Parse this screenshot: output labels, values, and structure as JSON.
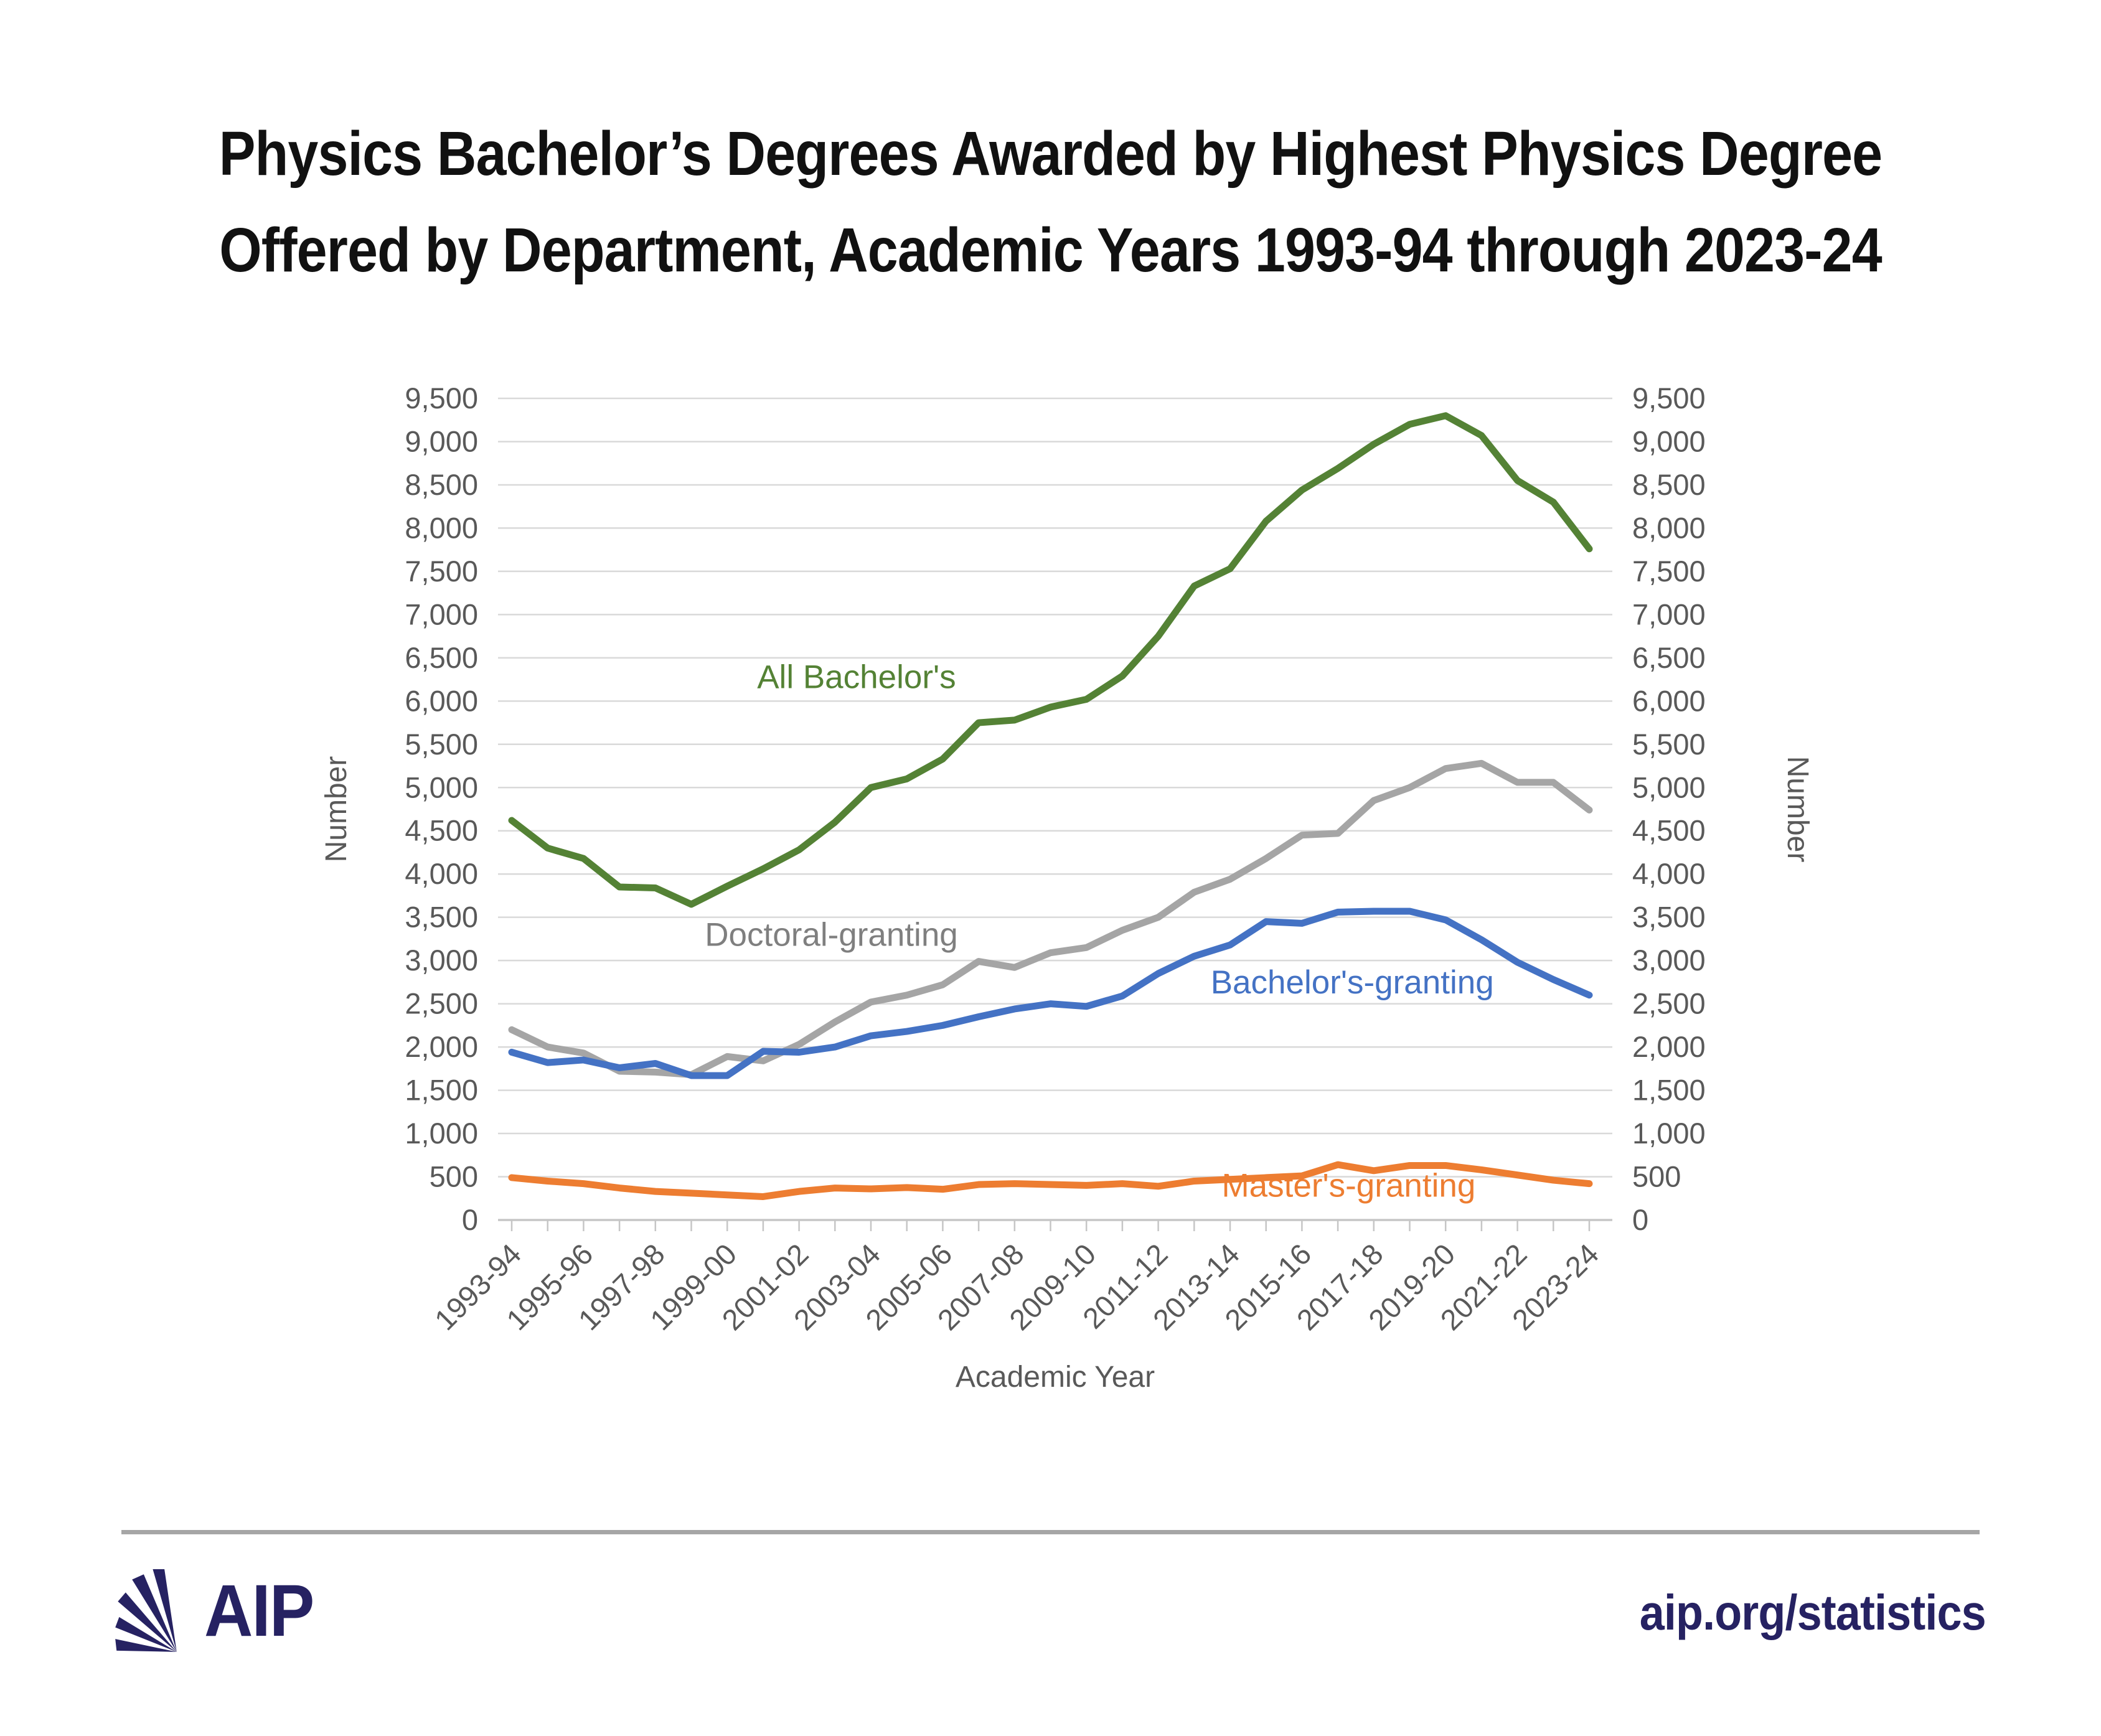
{
  "title": {
    "line1": "Physics Bachelor’s Degrees Awarded by Highest Physics Degree",
    "line2": "Offered by Department, Academic Years 1993-94 through 2023-24"
  },
  "chart_data": {
    "type": "line",
    "grid": true,
    "x_axis": {
      "label": "Academic Year",
      "tick_label_every": 2,
      "categories": [
        "1993-94",
        "1994-95",
        "1995-96",
        "1996-97",
        "1997-98",
        "1998-99",
        "1999-00",
        "2000-01",
        "2001-02",
        "2002-03",
        "2003-04",
        "2004-05",
        "2005-06",
        "2006-07",
        "2007-08",
        "2008-09",
        "2009-10",
        "2010-11",
        "2011-12",
        "2012-13",
        "2013-14",
        "2014-15",
        "2015-16",
        "2016-17",
        "2017-18",
        "2018-19",
        "2019-20",
        "2020-21",
        "2021-22",
        "2022-23",
        "2023-24"
      ]
    },
    "y_axis": {
      "label_left": "Number",
      "label_right": "Number",
      "min": 0,
      "max": 9500,
      "step": 500
    },
    "colors": {
      "gridline": "#d9d9d9",
      "axis_line": "#c6c6c6",
      "tick_text": "#595959",
      "axis_title_text": "#595959"
    },
    "series": [
      {
        "name": "All Bachelor's",
        "color": "#548235",
        "label_color": "#548235",
        "label_at": {
          "x_index": 9.6,
          "value": 6280
        },
        "values": [
          4620,
          4300,
          4180,
          3850,
          3840,
          3650,
          3860,
          4060,
          4280,
          4600,
          5000,
          5100,
          5330,
          5750,
          5780,
          5930,
          6020,
          6290,
          6750,
          7330,
          7530,
          8080,
          8440,
          8690,
          8970,
          9200,
          9300,
          9070,
          8550,
          8300,
          7760
        ]
      },
      {
        "name": "Doctoral-granting",
        "color": "#a5a5a5",
        "label_color": "#7f7f7f",
        "label_at": {
          "x_index": 8.9,
          "value": 3300
        },
        "values": [
          2200,
          2000,
          1930,
          1720,
          1710,
          1680,
          1890,
          1840,
          2030,
          2290,
          2520,
          2600,
          2720,
          2990,
          2920,
          3090,
          3150,
          3350,
          3500,
          3790,
          3940,
          4180,
          4450,
          4470,
          4850,
          5000,
          5220,
          5280,
          5060,
          5060,
          4740
        ]
      },
      {
        "name": "Bachelor's-granting",
        "color": "#4472c4",
        "label_color": "#4472c4",
        "label_at": {
          "x_index": 23.4,
          "value": 2750
        },
        "values": [
          1940,
          1820,
          1850,
          1760,
          1810,
          1670,
          1670,
          1950,
          1940,
          2000,
          2130,
          2180,
          2250,
          2350,
          2440,
          2500,
          2470,
          2590,
          2850,
          3050,
          3180,
          3450,
          3430,
          3560,
          3570,
          3570,
          3470,
          3240,
          2980,
          2780,
          2600
        ]
      },
      {
        "name": "Master's-granting",
        "color": "#ed7d31",
        "label_color": "#ed7d31",
        "label_at": {
          "x_index": 23.3,
          "value": 400
        },
        "values": [
          490,
          450,
          420,
          370,
          330,
          310,
          290,
          270,
          330,
          370,
          360,
          375,
          355,
          410,
          420,
          410,
          400,
          420,
          390,
          450,
          470,
          490,
          510,
          640,
          570,
          630,
          630,
          580,
          520,
          460,
          420
        ]
      }
    ]
  },
  "footer": {
    "brand": "AIP",
    "link": "aip.org/statistics"
  }
}
